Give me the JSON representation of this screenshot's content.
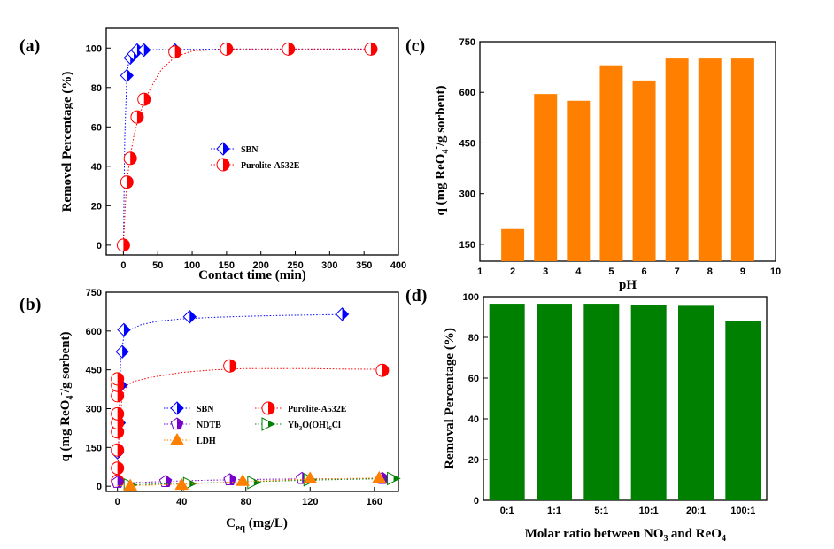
{
  "chart_data": [
    {
      "id": "a",
      "type": "scatter",
      "panel_label": "(a)",
      "xlabel": "Contact time (min)",
      "ylabel": "Removel Percentage (%)",
      "xlim": [
        -25,
        400
      ],
      "ylim": [
        -5,
        110
      ],
      "xticks": [
        0,
        50,
        100,
        150,
        200,
        250,
        300,
        350,
        400
      ],
      "yticks": [
        0,
        20,
        40,
        60,
        80,
        100
      ],
      "legend_position": "center-right",
      "series": [
        {
          "name": "SBN",
          "color": "#0000ff",
          "marker": "diamond",
          "x": [
            5,
            10,
            15,
            20,
            30,
            75,
            150,
            240,
            360
          ],
          "y": [
            86,
            95,
            97,
            99,
            99,
            99,
            99.5,
            99.5,
            99.5
          ],
          "fit_x": [
            0,
            2,
            5,
            8,
            12,
            20,
            30,
            50,
            80,
            120,
            150,
            200,
            250,
            300,
            360
          ],
          "fit_y": [
            0,
            55,
            86,
            94,
            97,
            98.5,
            99,
            99.2,
            99.3,
            99.4,
            99.5,
            99.5,
            99.5,
            99.5,
            99.5
          ]
        },
        {
          "name": "Purolite-A532E",
          "color": "#ff0000",
          "marker": "circle",
          "x": [
            0,
            5,
            10,
            20,
            30,
            75,
            150,
            240,
            360
          ],
          "y": [
            0,
            32,
            44,
            65,
            74,
            98,
            99.5,
            99.5,
            99.5
          ],
          "fit_x": [
            0,
            3,
            6,
            10,
            15,
            20,
            30,
            40,
            55,
            75,
            100,
            150,
            200,
            250,
            300,
            360
          ],
          "fit_y": [
            0,
            22,
            35,
            45,
            55,
            62,
            73,
            80,
            89,
            95.5,
            98.5,
            99.5,
            99.5,
            99.5,
            99.5,
            99.5
          ]
        }
      ]
    },
    {
      "id": "b",
      "type": "scatter",
      "panel_label": "(b)",
      "xlabel_main": "C",
      "xlabel_sub": "eq",
      "xlabel_rest": " (mg/L)",
      "ylabel_a": "q (mg ReO",
      "ylabel_sub": "4",
      "ylabel_sup": "-",
      "ylabel_b": "/g sorbent)",
      "xlim": [
        -7,
        175
      ],
      "ylim": [
        -20,
        750
      ],
      "xticks": [
        0,
        40,
        80,
        120,
        160
      ],
      "yticks": [
        0,
        150,
        300,
        450,
        600,
        750
      ],
      "legend_position": "center",
      "legend_pre": "Yb",
      "legend_sub1": "3",
      "legend_mid": "O(OH)",
      "legend_sub2": "6",
      "legend_post": "Cl",
      "series": [
        {
          "name": "SBN",
          "color": "#0000ff",
          "marker": "diamond",
          "x": [
            0,
            1,
            2,
            3,
            45,
            140
          ],
          "y": [
            130,
            245,
            390,
            520,
            655,
            665
          ],
          "x2": [
            4
          ],
          "y2": [
            605
          ],
          "fit_x": [
            0,
            2,
            4,
            8,
            15,
            25,
            40,
            60,
            80,
            100,
            120,
            140
          ],
          "fit_y": [
            0,
            500,
            580,
            605,
            625,
            638,
            647,
            653,
            657,
            660,
            662,
            664
          ]
        },
        {
          "name": "Purolite-A532E",
          "color": "#ff0000",
          "marker": "circle",
          "x": [
            0,
            0,
            0,
            0,
            0,
            0,
            0,
            0,
            0,
            70,
            165
          ],
          "y": [
            20,
            70,
            140,
            210,
            245,
            280,
            350,
            390,
            415,
            465,
            448
          ],
          "fit_x": [
            0,
            1,
            3,
            6,
            10,
            20,
            40,
            60,
            80,
            100,
            120,
            140,
            165
          ],
          "fit_y": [
            0,
            220,
            350,
            390,
            405,
            420,
            440,
            450,
            455,
            455,
            455,
            453,
            452
          ]
        },
        {
          "name": "NDTB",
          "color": "#7700cc",
          "marker": "pentagon",
          "x": [
            0,
            30,
            70,
            115,
            165
          ],
          "y": [
            15,
            18,
            25,
            30,
            30
          ],
          "fit_x": [
            0,
            10,
            30,
            60,
            90,
            120,
            165
          ],
          "fit_y": [
            10,
            14,
            19,
            24,
            27,
            29,
            30
          ]
        },
        {
          "name": "Yb3O(OH)6Cl",
          "color": "#008000",
          "marker": "triangle-right",
          "x": [
            8,
            45,
            85,
            120,
            172
          ],
          "y": [
            5,
            10,
            15,
            25,
            30
          ],
          "fit_x": [
            0,
            10,
            40,
            80,
            120,
            172
          ],
          "fit_y": [
            3,
            6,
            11,
            17,
            24,
            30
          ]
        },
        {
          "name": "LDH",
          "color": "#ff8000",
          "marker": "triangle-up",
          "x": [
            8,
            40,
            78,
            120,
            163
          ],
          "y": [
            2,
            5,
            20,
            30,
            32
          ],
          "fit_x": [
            0,
            20,
            40,
            80,
            120,
            163
          ],
          "fit_y": [
            2,
            4,
            8,
            18,
            28,
            32
          ]
        }
      ]
    },
    {
      "id": "c",
      "type": "bar",
      "panel_label": "(c)",
      "xlabel": "pH",
      "ylabel_a": "q (mg ReO",
      "ylabel_sub": "4",
      "ylabel_sup": "-",
      "ylabel_b": "/g sorbent)",
      "xlim": [
        1,
        10
      ],
      "ylim": [
        100,
        750
      ],
      "xticks": [
        1,
        2,
        3,
        4,
        5,
        6,
        7,
        8,
        9,
        10
      ],
      "yticks": [
        150,
        300,
        450,
        600,
        750
      ],
      "color": "#ff8000",
      "categories": [
        2,
        3,
        4,
        5,
        6,
        7,
        8,
        9
      ],
      "values": [
        195,
        595,
        575,
        680,
        635,
        700,
        700,
        700
      ]
    },
    {
      "id": "d",
      "type": "bar",
      "panel_label": "(d)",
      "xlabel_a": "Molar ratio between NO",
      "xlabel_sub1": "3",
      "xlabel_sup1": "-",
      "xlabel_b": "and ReO",
      "xlabel_sub2": "4",
      "xlabel_sup2": "-",
      "ylabel": "Removal Percentage (%)",
      "ylim": [
        0,
        100
      ],
      "yticks": [
        0,
        20,
        40,
        60,
        80,
        100
      ],
      "color": "#008000",
      "categories": [
        "0:1",
        "1:1",
        "5:1",
        "10:1",
        "20:1",
        "100:1"
      ],
      "values": [
        96.5,
        96.5,
        96.5,
        96,
        95.5,
        88
      ]
    }
  ]
}
